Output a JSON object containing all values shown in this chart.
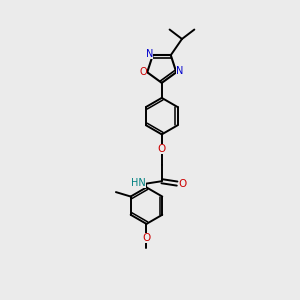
{
  "bg_color": "#ebebeb",
  "atom_colors": {
    "C": "#000000",
    "N": "#0000cc",
    "O": "#cc0000",
    "H": "#008080"
  },
  "bond_color": "#000000",
  "figsize": [
    3.0,
    3.0
  ],
  "dpi": 100,
  "xlim": [
    0,
    10
  ],
  "ylim": [
    0,
    10
  ]
}
